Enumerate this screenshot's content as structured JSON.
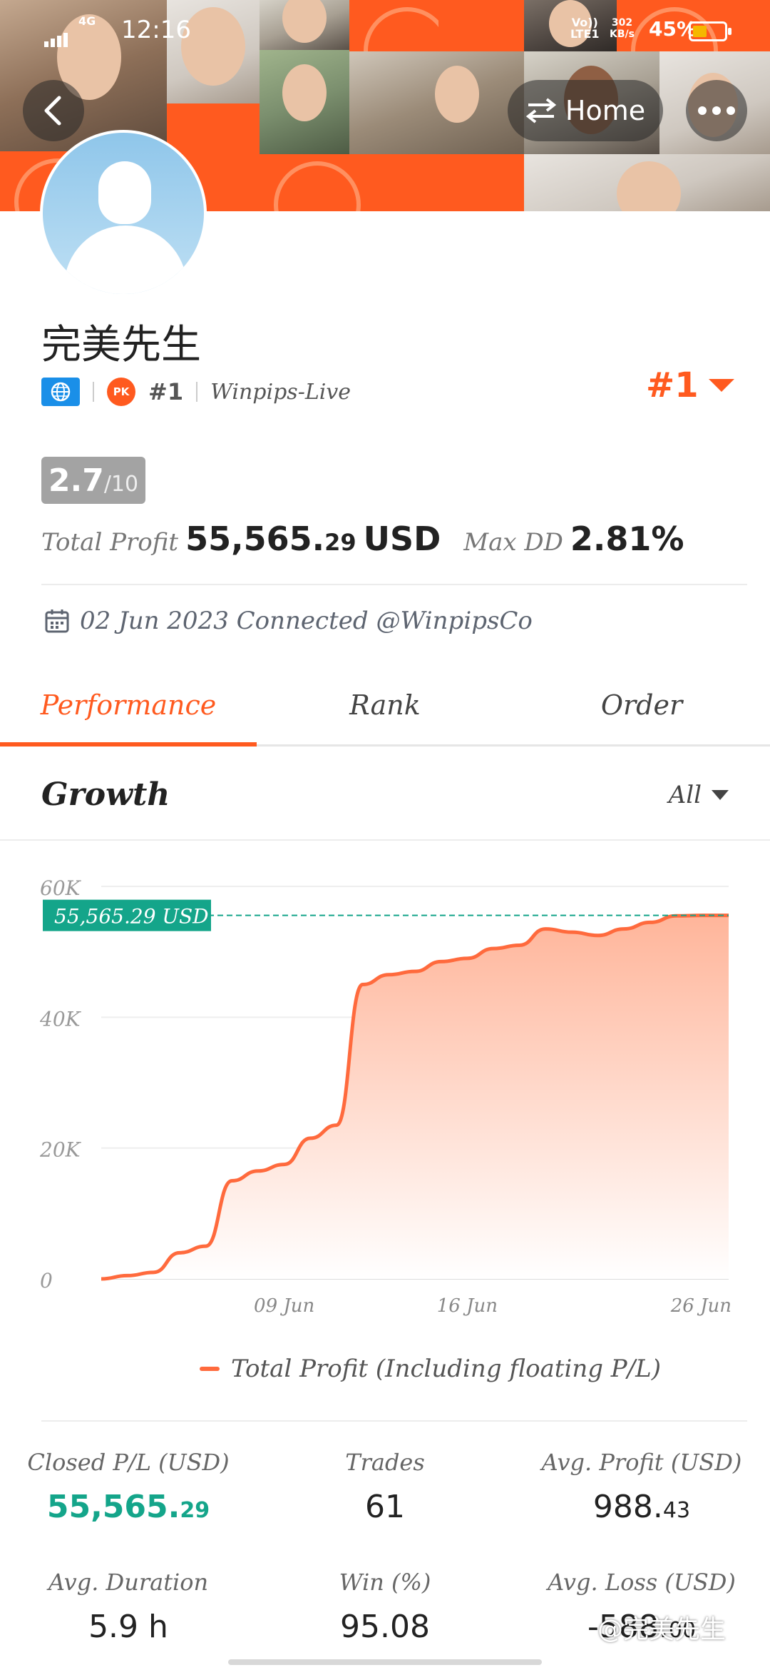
{
  "status_bar": {
    "network": "4G",
    "time": "12:16",
    "volte": "Vo))\nLTE1",
    "speed": "302\nKB/s",
    "battery_pct": "45%",
    "battery_level": 0.45
  },
  "header": {
    "home_label": "Home",
    "back_icon": "chevron-left-icon",
    "more_icon": "more-dots-icon",
    "switch_icon": "switch-arrows-icon"
  },
  "profile": {
    "name": "完美先生",
    "rank_small": "#1",
    "account": "Winpips-Live",
    "rank_big": "#1",
    "score_value": "2.7",
    "score_denominator": "/10",
    "total_profit_label": "Total Profit",
    "total_profit_main": "55,565.",
    "total_profit_decimals": "29",
    "total_profit_currency": "USD",
    "max_dd_label": "Max DD",
    "max_dd_value": "2.81%",
    "connected_text": "02 Jun 2023 Connected @WinpipsCo"
  },
  "tabs": [
    {
      "label": "Performance",
      "active": true
    },
    {
      "label": "Rank",
      "active": false
    },
    {
      "label": "Order",
      "active": false
    }
  ],
  "growth": {
    "title": "Growth",
    "filter": "All"
  },
  "chart_data": {
    "type": "area",
    "title": "",
    "xlabel": "",
    "ylabel": "",
    "ylim": [
      0,
      60000
    ],
    "y_ticks": [
      "0",
      "20K",
      "40K",
      "60K"
    ],
    "x_ticks": [
      "09 Jun",
      "16 Jun",
      "26 Jun"
    ],
    "current_label": "55,565.29 USD",
    "current_value": 55565.29,
    "series": [
      {
        "name": "Total Profit (Including floating P/L)",
        "color": "#ff6a3d",
        "x": [
          "02 Jun",
          "03 Jun",
          "04 Jun",
          "05 Jun",
          "06 Jun",
          "07 Jun",
          "08 Jun",
          "09 Jun",
          "10 Jun",
          "11 Jun",
          "12 Jun",
          "13 Jun",
          "14 Jun",
          "15 Jun",
          "16 Jun",
          "17 Jun",
          "18 Jun",
          "19 Jun",
          "20 Jun",
          "21 Jun",
          "22 Jun",
          "23 Jun",
          "24 Jun",
          "25 Jun",
          "26 Jun"
        ],
        "values": [
          0,
          500,
          1000,
          4000,
          5000,
          15000,
          16500,
          17500,
          21500,
          23500,
          45000,
          46500,
          47000,
          48500,
          49000,
          50500,
          51000,
          53500,
          53000,
          52500,
          53500,
          54500,
          55500,
          55565,
          55565
        ]
      }
    ]
  },
  "stats": [
    {
      "label": "Closed P/L (USD)",
      "main": "55,565.",
      "dec": "29",
      "green": true
    },
    {
      "label": "Trades",
      "main": "61",
      "dec": "",
      "green": false
    },
    {
      "label": "Avg. Profit (USD)",
      "main": "988.",
      "dec": "43",
      "green": false
    },
    {
      "label": "Avg. Duration",
      "main": "5.9 h",
      "dec": "",
      "green": false
    },
    {
      "label": "Win (%)",
      "main": "95.08",
      "dec": "",
      "green": false
    },
    {
      "label": "Avg. Loss (USD)",
      "main": "-588.",
      "dec": "00",
      "green": false
    }
  ],
  "watermark": "@完美先生",
  "colors": {
    "accent": "#ff5a1f",
    "green": "#14a58a",
    "area_top": "#ffb59a"
  }
}
